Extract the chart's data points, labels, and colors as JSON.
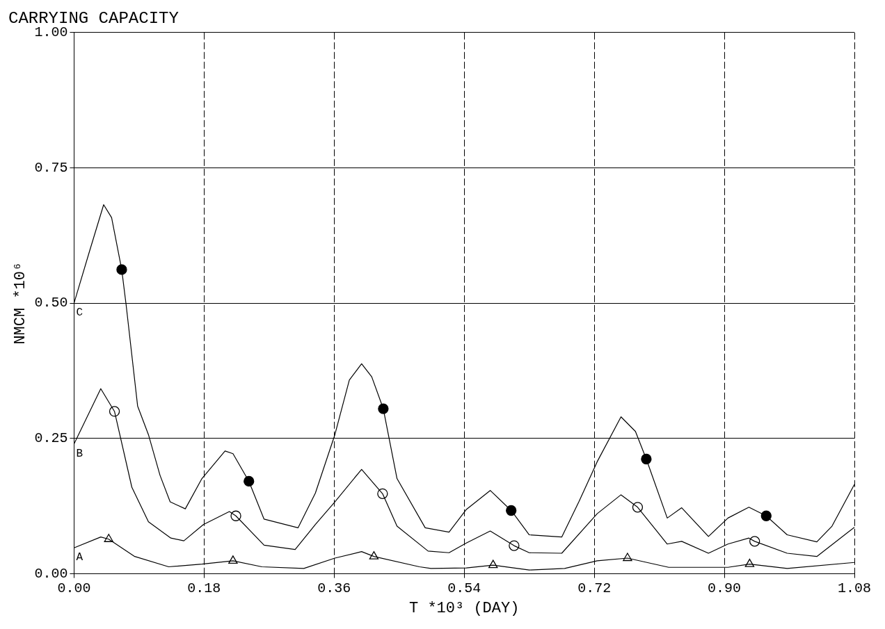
{
  "chart_data": {
    "type": "line",
    "title": "CARRYING CAPACITY",
    "xlabel": "T *10³ (DAY)",
    "ylabel": "NMCM *10⁶",
    "xlim": [
      0,
      1.08
    ],
    "ylim": [
      0,
      1
    ],
    "xticks": [
      {
        "value": 0,
        "label": "0.00"
      },
      0.18,
      0.36,
      0.54,
      0.72,
      {
        "value": 0.9,
        "label": "0.90"
      },
      1.08
    ],
    "yticks": [
      {
        "value": 0,
        "label": "0.00"
      },
      0.25,
      {
        "value": 0.5,
        "label": "0.50"
      },
      0.75,
      {
        "value": 1,
        "label": "1.00"
      }
    ],
    "grid": true,
    "legend": false,
    "marker": "none",
    "series": [
      {
        "name": "C",
        "color": "#000000",
        "x": [
          0,
          0.021,
          0.041,
          0.052,
          0.066,
          0.072,
          0.088,
          0.103,
          0.119,
          0.133,
          0.154,
          0.177,
          0.209,
          0.22,
          0.242,
          0.263,
          0.31,
          0.334,
          0.361,
          0.381,
          0.398,
          0.412,
          0.428,
          0.447,
          0.486,
          0.519,
          0.543,
          0.576,
          0.605,
          0.63,
          0.675,
          0.699,
          0.724,
          0.757,
          0.777,
          0.792,
          0.821,
          0.841,
          0.878,
          0.905,
          0.934,
          0.958,
          0.987,
          1.028,
          1.049,
          1.08
        ],
        "values": [
          0.5,
          0.594,
          0.682,
          0.658,
          0.562,
          0.498,
          0.31,
          0.257,
          0.182,
          0.133,
          0.12,
          0.176,
          0.227,
          0.222,
          0.171,
          0.101,
          0.085,
          0.149,
          0.257,
          0.358,
          0.388,
          0.364,
          0.305,
          0.176,
          0.085,
          0.077,
          0.119,
          0.154,
          0.117,
          0.072,
          0.068,
          0.134,
          0.207,
          0.29,
          0.263,
          0.212,
          0.103,
          0.122,
          0.069,
          0.103,
          0.123,
          0.107,
          0.072,
          0.059,
          0.088,
          0.165
        ]
      },
      {
        "name": "B",
        "color": "#000000",
        "x": [
          0,
          0.037,
          0.056,
          0.08,
          0.103,
          0.134,
          0.152,
          0.179,
          0.215,
          0.224,
          0.263,
          0.306,
          0.334,
          0.361,
          0.398,
          0.427,
          0.447,
          0.49,
          0.519,
          0.543,
          0.576,
          0.609,
          0.63,
          0.675,
          0.724,
          0.757,
          0.78,
          0.821,
          0.841,
          0.878,
          0.905,
          0.934,
          0.942,
          0.987,
          1.028,
          1.08
        ],
        "values": [
          0.24,
          0.342,
          0.3,
          0.16,
          0.096,
          0.066,
          0.061,
          0.091,
          0.115,
          0.107,
          0.053,
          0.045,
          0.091,
          0.133,
          0.193,
          0.148,
          0.088,
          0.042,
          0.039,
          0.057,
          0.079,
          0.052,
          0.039,
          0.038,
          0.111,
          0.146,
          0.123,
          0.055,
          0.06,
          0.038,
          0.055,
          0.066,
          0.06,
          0.038,
          0.032,
          0.086
        ]
      },
      {
        "name": "A",
        "color": "#000000",
        "x": [
          0,
          0.037,
          0.048,
          0.084,
          0.131,
          0.177,
          0.22,
          0.26,
          0.318,
          0.361,
          0.398,
          0.415,
          0.478,
          0.494,
          0.543,
          0.58,
          0.63,
          0.679,
          0.724,
          0.766,
          0.823,
          0.905,
          0.935,
          0.987,
          1.08
        ],
        "values": [
          0.048,
          0.068,
          0.064,
          0.032,
          0.013,
          0.018,
          0.024,
          0.013,
          0.01,
          0.029,
          0.041,
          0.032,
          0.013,
          0.01,
          0.011,
          0.016,
          0.007,
          0.01,
          0.024,
          0.029,
          0.012,
          0.012,
          0.018,
          0.01,
          0.021
        ]
      },
      {
        "type": "scatter",
        "marker": "circle",
        "color": "#000000",
        "x": [
          0.066,
          0.242,
          0.428,
          0.605,
          0.792,
          0.958
        ],
        "values": [
          0.562,
          0.171,
          0.305,
          0.117,
          0.212,
          0.107
        ]
      },
      {
        "type": "scatter",
        "marker": "circle",
        "color": "#000000",
        "x": [
          0.056,
          0.224,
          0.427,
          0.609,
          0.78,
          0.942
        ],
        "values": [
          0.3,
          0.107,
          0.148,
          0.052,
          0.123,
          0.06
        ]
      },
      {
        "type": "scatter",
        "marker": "triangle",
        "color": "#000000",
        "x": [
          0.048,
          0.22,
          0.415,
          0.58,
          0.766,
          0.935
        ],
        "values": [
          0.064,
          0.024,
          0.032,
          0.016,
          0.029,
          0.018
        ]
      }
    ]
  }
}
